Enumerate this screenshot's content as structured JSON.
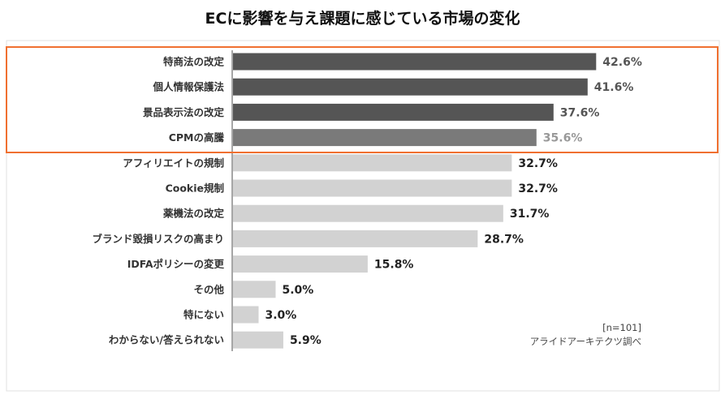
{
  "chart_data": {
    "type": "bar",
    "orientation": "horizontal",
    "title": "ECに影響を与え課題に感じている市場の変化",
    "categories": [
      "特商法の改定",
      "個人情報保護法",
      "景品表示法の改定",
      "CPMの高騰",
      "アフィリエイトの規制",
      "Cookie規制",
      "薬機法の改定",
      "ブランド毀損リスクの高まり",
      "IDFAポリシーの変更",
      "その他",
      "特にない",
      "わからない/答えられない"
    ],
    "values": [
      42.6,
      41.6,
      37.6,
      35.6,
      32.7,
      32.7,
      31.7,
      28.7,
      15.8,
      5.0,
      3.0,
      5.9
    ],
    "value_labels": [
      "42.6%",
      "41.6%",
      "37.6%",
      "35.6%",
      "32.7%",
      "32.7%",
      "31.7%",
      "28.7%",
      "15.8%",
      "5.0%",
      "3.0%",
      "5.9%"
    ],
    "highlighted_count": 4,
    "xlim": [
      0,
      50
    ],
    "grid": false,
    "annotations": [
      "[n=101]",
      "アライドアーキテクツ調べ"
    ],
    "colors": {
      "highlight_dark": "#555555",
      "highlight_mid": "#7a7a7a",
      "normal": "#d2d2d2",
      "highlight_box": "#f07030",
      "label_dark": "#555555",
      "label_mid": "#999999",
      "label_normal": "#222222"
    }
  }
}
